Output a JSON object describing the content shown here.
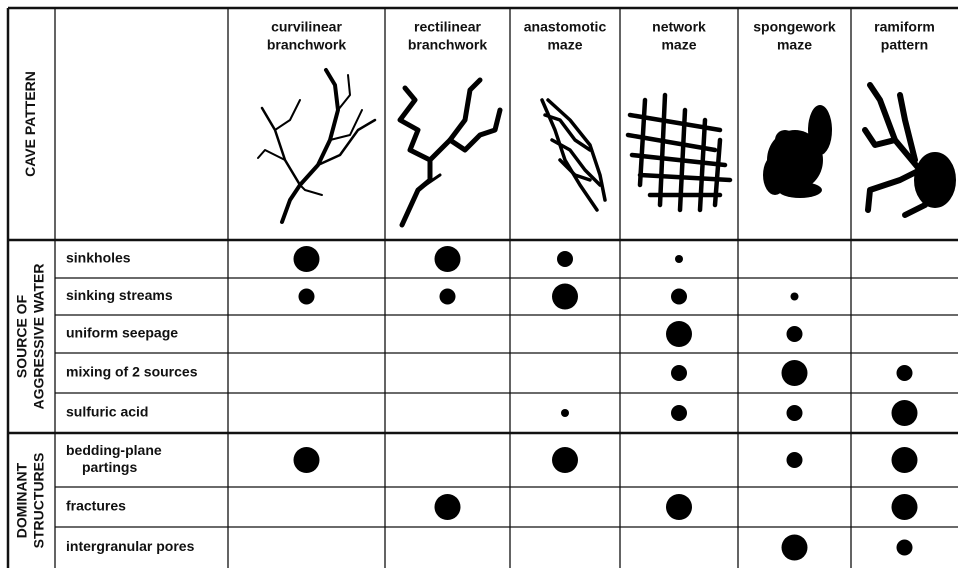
{
  "header_label": "CAVE PATTERN",
  "columns": [
    {
      "label": [
        "curvilinear",
        "branchwork"
      ]
    },
    {
      "label": [
        "rectilinear",
        "branchwork"
      ]
    },
    {
      "label": [
        "anastomotic",
        "maze"
      ]
    },
    {
      "label": [
        "network",
        "maze"
      ]
    },
    {
      "label": [
        "spongework",
        "maze"
      ]
    },
    {
      "label": [
        "ramiform",
        "pattern"
      ]
    }
  ],
  "groups": [
    {
      "label": [
        "SOURCE OF",
        "AGGRESSIVE WATER"
      ],
      "rows": [
        {
          "label": [
            "sinkholes"
          ],
          "levels": [
            3,
            3,
            2,
            1,
            null,
            null
          ]
        },
        {
          "label": [
            "sinking streams"
          ],
          "levels": [
            2,
            2,
            3,
            2,
            1,
            null
          ]
        },
        {
          "label": [
            "uniform seepage"
          ],
          "levels": [
            null,
            null,
            null,
            3,
            2,
            null
          ]
        },
        {
          "label": [
            "mixing of 2 sources"
          ],
          "levels": [
            null,
            null,
            null,
            2,
            3,
            2
          ]
        },
        {
          "label": [
            "sulfuric acid"
          ],
          "levels": [
            null,
            null,
            1,
            2,
            2,
            3
          ]
        }
      ]
    },
    {
      "label": [
        "DOMINANT",
        "STRUCTURES"
      ],
      "rows": [
        {
          "label": [
            "bedding-plane",
            "partings"
          ],
          "levels": [
            3,
            null,
            3,
            null,
            2,
            3
          ]
        },
        {
          "label": [
            "fractures"
          ],
          "levels": [
            null,
            3,
            null,
            3,
            null,
            3
          ]
        },
        {
          "label": [
            "intergranular pores"
          ],
          "levels": [
            null,
            null,
            null,
            null,
            3,
            2
          ]
        }
      ]
    }
  ]
}
